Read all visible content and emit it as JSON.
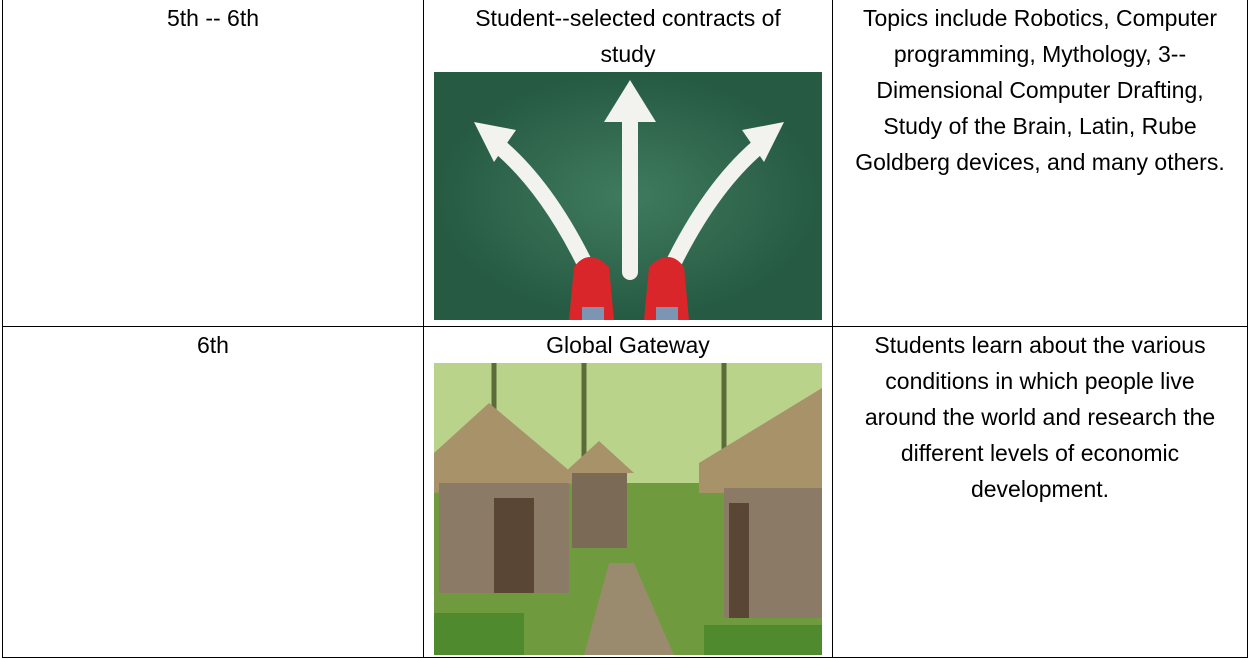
{
  "table": {
    "rows": [
      [
        "5th -- 6th",
        "Student--selected contracts of study",
        "Topics include Robotics, Computer programming, Mythology, 3--Dimensional Computer Drafting, Study of the Brain, Latin, Rube Goldberg devices, and many others."
      ],
      [
        "6th",
        "Global Gateway",
        "Students learn about the various conditions in which people live around the world and research the different levels of economic development."
      ]
    ]
  }
}
